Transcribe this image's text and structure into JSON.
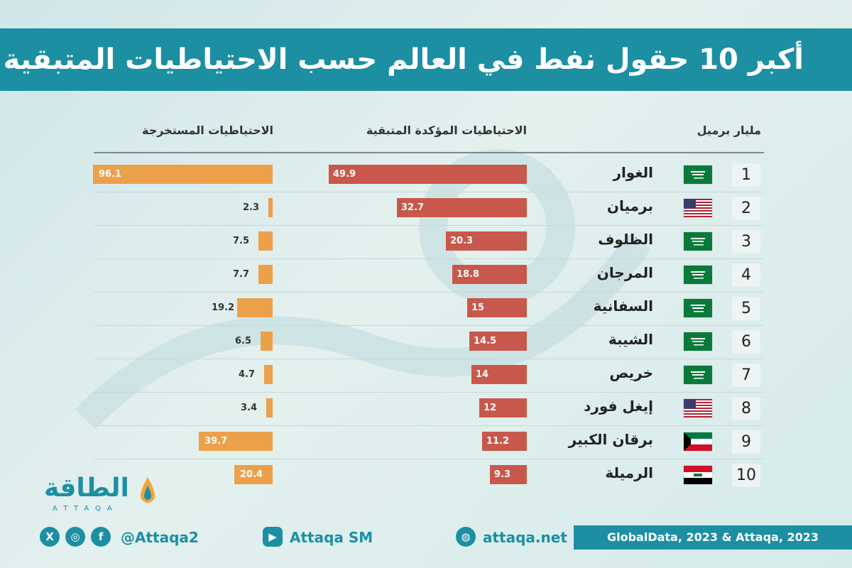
{
  "title": "أكبر 10 حقول نفط في العالم حسب الاحتياطيات المتبقية",
  "chart_data": {
    "type": "bar",
    "unit_label": "مليار برميل",
    "ranks": [
      "1",
      "2",
      "3",
      "4",
      "5",
      "6",
      "7",
      "8",
      "9",
      "10"
    ],
    "categories": [
      "الغوار",
      "برميان",
      "الظلوف",
      "المرجان",
      "السفانية",
      "الشيبة",
      "خريص",
      "إيغل فورد",
      "برقان الكبير",
      "الرميلة"
    ],
    "countries": [
      "saudi",
      "usa",
      "saudi",
      "saudi",
      "saudi",
      "saudi",
      "saudi",
      "usa",
      "kuwait",
      "iraq"
    ],
    "series": [
      {
        "name": "الاحتياطيات المؤكدة المتبقية",
        "color": "#c8584b",
        "values": [
          49.9,
          32.7,
          20.3,
          18.8,
          15,
          14.5,
          14,
          12,
          11.2,
          9.3
        ],
        "labels": [
          "49.9",
          "32.7",
          "20.3",
          "18.8",
          "15",
          "14.5",
          "14",
          "12",
          "11.2",
          "9.3"
        ]
      },
      {
        "name": "الاحتياطيات المستخرجة",
        "color": "#eda04a",
        "values": [
          96.1,
          2.3,
          7.5,
          7.7,
          19.2,
          6.5,
          4.7,
          3.4,
          39.7,
          20.4
        ],
        "labels": [
          "96.1",
          "2.3",
          "7.5",
          "7.7",
          "19.2",
          "6.5",
          "4.7",
          "3.4",
          "39.7",
          "20.4"
        ]
      }
    ]
  },
  "brand": {
    "logo_text": "الطاقة",
    "logo_sub": "ATTAQA",
    "social_handle": "@Attaqa2",
    "youtube": "Attaqa SM",
    "website": "attaqa.net",
    "source": "GlobalData, 2023 & Attaqa, 2023",
    "accent": "#1d8fa3"
  },
  "icons": {
    "x": "x-icon",
    "instagram": "instagram-icon",
    "facebook": "facebook-icon",
    "youtube": "youtube-icon",
    "web": "globe-icon"
  }
}
